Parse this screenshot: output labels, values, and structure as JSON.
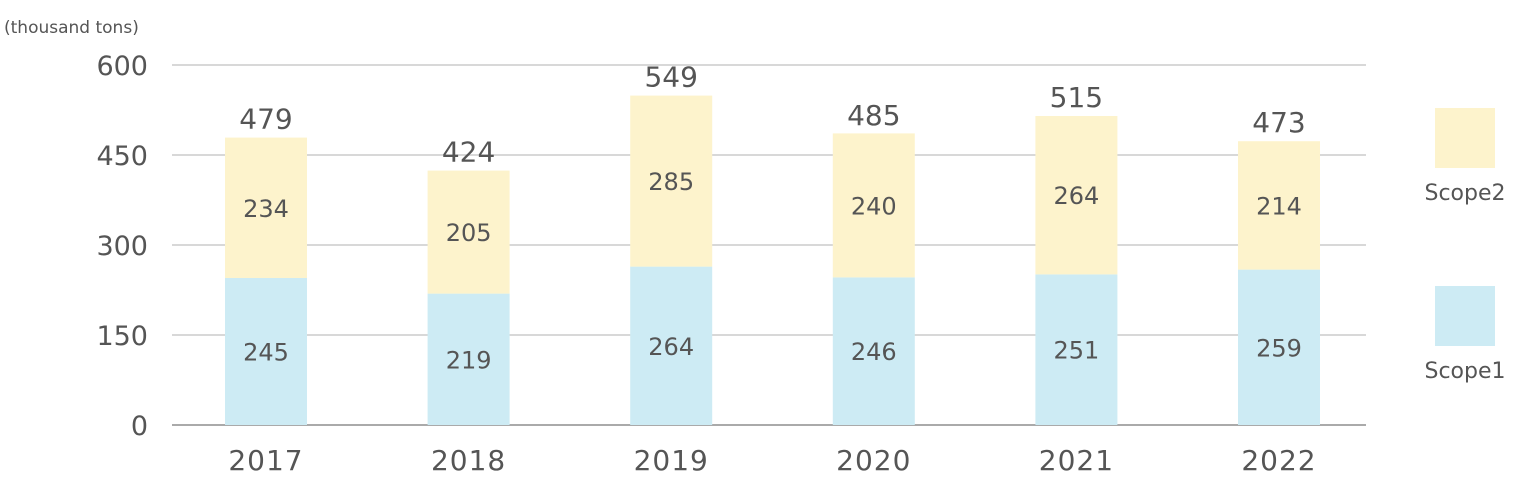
{
  "chart_data": {
    "type": "bar",
    "stacked": true,
    "unit_label": "(thousand tons)",
    "categories": [
      "2017",
      "2018",
      "2019",
      "2020",
      "2021",
      "2022"
    ],
    "series": [
      {
        "name": "Scope1",
        "values": [
          245,
          219,
          264,
          246,
          251,
          259
        ],
        "color": "#cdebf4"
      },
      {
        "name": "Scope2",
        "values": [
          234,
          205,
          285,
          240,
          264,
          214
        ],
        "color": "#fdf3cc"
      }
    ],
    "totals": [
      479,
      424,
      549,
      485,
      515,
      473
    ],
    "ylim": [
      0,
      600
    ],
    "yticks": [
      0,
      150,
      300,
      450,
      600
    ],
    "grid": true,
    "legend_position": "right"
  }
}
